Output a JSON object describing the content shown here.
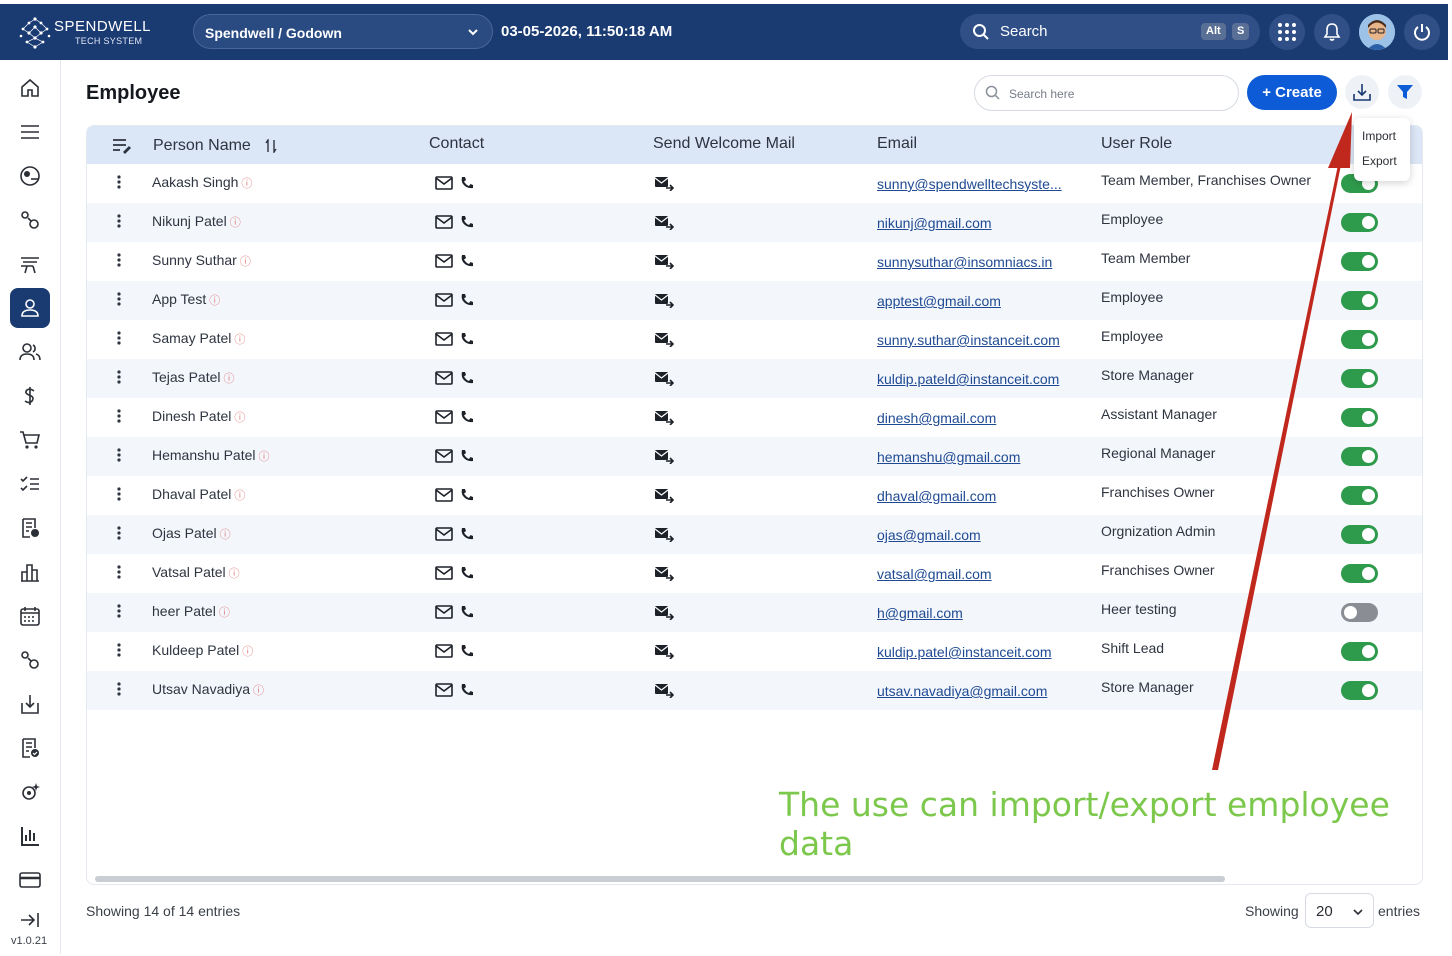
{
  "brand": {
    "name": "SPENDWELL",
    "sub": "TECH SYSTEM"
  },
  "topbar": {
    "org_selector": "Spendwell / Godown",
    "datetime": "03-05-2026, 11:50:18 AM",
    "search_label": "Search",
    "shortcut_keys": [
      "Alt",
      "S"
    ]
  },
  "sidebar": {
    "items": [
      "home-icon",
      "menu-icon",
      "dashboard-icon",
      "settings-cog-icon",
      "workstation-icon",
      "employee-icon",
      "team-icon",
      "dollar-icon",
      "cart-icon",
      "checklist-icon",
      "report-icon",
      "chart-icon",
      "calendar-icon",
      "settings-cog-icon",
      "download-tray-icon",
      "document-check-icon",
      "gear-sparkle-icon",
      "bar-chart-icon",
      "card-icon"
    ],
    "active": "employee-icon",
    "version": "v1.0.21"
  },
  "page": {
    "title": "Employee",
    "search_placeholder": "Search here",
    "create_label": "+ Create",
    "dropdown": [
      "Import",
      "Export"
    ]
  },
  "table": {
    "columns": [
      "Person Name",
      "Contact",
      "Send Welcome Mail",
      "Email",
      "User Role"
    ],
    "rows": [
      {
        "name": "Aakash Singh",
        "email": "sunny@spendwelltechsyste...",
        "role": "Team Member, Franchises Owner",
        "active": true
      },
      {
        "name": "Nikunj Patel",
        "email": "nikunj@gmail.com",
        "role": "Employee",
        "active": true
      },
      {
        "name": "Sunny Suthar",
        "email": "sunnysuthar@insomniacs.in",
        "role": "Team Member",
        "active": true
      },
      {
        "name": "App Test",
        "email": "apptest@gmail.com",
        "role": "Employee",
        "active": true
      },
      {
        "name": "Samay Patel",
        "email": "sunny.suthar@instanceit.com",
        "role": "Employee",
        "active": true
      },
      {
        "name": "Tejas Patel",
        "email": "kuldip.pateld@instanceit.com",
        "role": "Store Manager",
        "active": true
      },
      {
        "name": "Dinesh Patel",
        "email": "dinesh@gmail.com",
        "role": "Assistant Manager",
        "active": true
      },
      {
        "name": "Hemanshu Patel",
        "email": "hemanshu@gmail.com",
        "role": "Regional Manager",
        "active": true
      },
      {
        "name": "Dhaval Patel",
        "email": "dhaval@gmail.com",
        "role": "Franchises Owner",
        "active": true
      },
      {
        "name": "Ojas Patel",
        "email": "ojas@gmail.com",
        "role": "Orgnization Admin",
        "active": true
      },
      {
        "name": "Vatsal Patel",
        "email": "vatsal@gmail.com",
        "role": "Franchises Owner",
        "active": true
      },
      {
        "name": "heer Patel",
        "email": "h@gmail.com",
        "role": "Heer testing",
        "active": false
      },
      {
        "name": "Kuldeep Patel",
        "email": "kuldip.patel@instanceit.com",
        "role": "Shift Lead",
        "active": true
      },
      {
        "name": "Utsav Navadiya",
        "email": "utsav.navadiya@gmail.com",
        "role": "Store Manager",
        "active": true
      }
    ]
  },
  "footer": {
    "summary": "Showing 14 of 14 entries",
    "showing_label": "Showing",
    "page_size": "20",
    "entries_label": "entries"
  },
  "annotation": "The use can import/export employee data",
  "colors": {
    "topbar": "#1a3a72",
    "primary": "#0d5bd6",
    "toggle_on": "#2e9a4c",
    "annotation": "#7cc84c",
    "arrow": "#c0281e"
  }
}
